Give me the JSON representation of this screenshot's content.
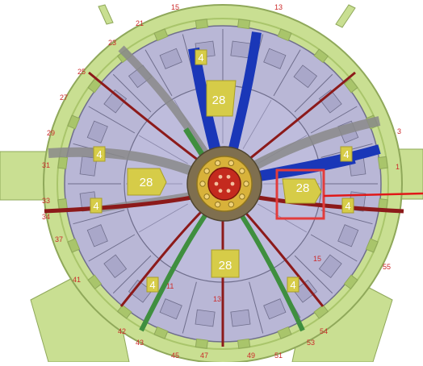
{
  "diagram": {
    "labels_28": [
      "28",
      "28",
      "28",
      "28"
    ],
    "labels_4": [
      "4",
      "4",
      "4",
      "4",
      "4",
      "4",
      "4"
    ],
    "sector_numbers": [
      "13",
      "15",
      "21",
      "23",
      "25",
      "27",
      "29",
      "31",
      "33",
      "34",
      "37",
      "41",
      "42",
      "43",
      "45",
      "47",
      "49",
      "51",
      "53",
      "54",
      "55",
      "3",
      "1",
      "13",
      "15",
      "11"
    ],
    "highlight_label": "28",
    "colors": {
      "outer_frame": "#c9df92",
      "outer_frame_dark": "#a9c56b",
      "sector_body": "#b9b7d6",
      "sector_panel": "#a9a7c9",
      "sector_line": "#6f6e8c",
      "cable_blue": "#1a37b8",
      "cable_red": "#8c1a1a",
      "cable_grey": "#8a8a8a",
      "cable_green": "#3f8f3f",
      "label_fill": "#d6cc48",
      "highlight_box": "#e23c3c",
      "pointer_line": "#e01818",
      "core_gold": "#d8b23a",
      "core_red": "#c42a1e"
    }
  }
}
